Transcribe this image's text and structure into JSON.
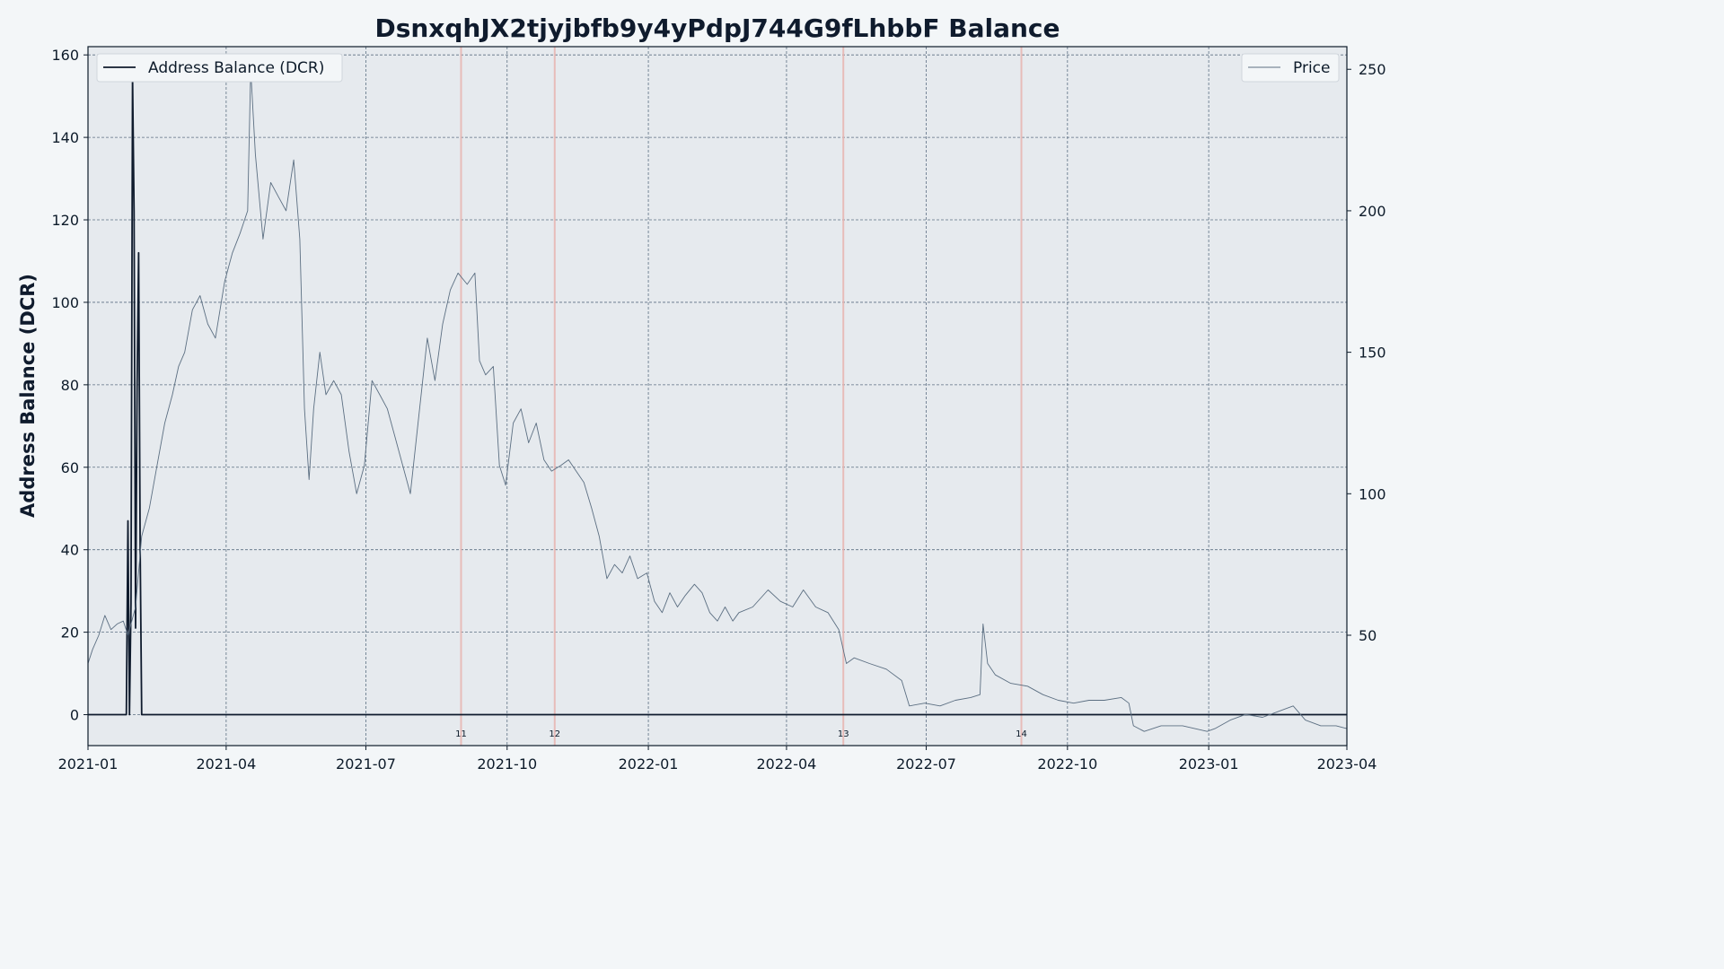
{
  "chart_data": {
    "type": "line",
    "title": "DsnxqhJX2tjyjbfb9y4yPdpJ744G9fLhbbF Balance",
    "ylabel": "Address Balance (DCR)",
    "ylabel_right": "",
    "xlim": [
      "2021-01-01",
      "2023-04-01"
    ],
    "ylim": [
      -7.5,
      162
    ],
    "ylim_right": [
      11,
      258
    ],
    "grid": true,
    "x_ticks": [
      "2021-01",
      "2021-04",
      "2021-07",
      "2021-10",
      "2022-01",
      "2022-04",
      "2022-07",
      "2022-10",
      "2023-01",
      "2023-04"
    ],
    "y_ticks": [
      0,
      20,
      40,
      60,
      80,
      100,
      120,
      140,
      160
    ],
    "y_ticks_right": [
      50,
      100,
      150,
      200,
      250
    ],
    "legend_left": {
      "position": "top-left",
      "label": "Address Balance (DCR)"
    },
    "legend_right": {
      "position": "top-right",
      "label": "Price"
    },
    "colors": {
      "balance": "#0f1b2d",
      "price": "#5c6f82",
      "markers": "#e8b4b0",
      "plot_background": "#e6eaee",
      "page_background": "#f3f6f8",
      "grid": "#5c6f82"
    },
    "series": [
      {
        "name": "Address Balance (DCR)",
        "axis": "left",
        "points": [
          [
            "2021-01-01",
            0
          ],
          [
            "2021-01-26",
            0
          ],
          [
            "2021-01-27",
            47
          ],
          [
            "2021-01-28",
            0
          ],
          [
            "2021-01-29",
            27
          ],
          [
            "2021-01-30",
            155
          ],
          [
            "2021-01-31",
            122
          ],
          [
            "2021-02-01",
            21
          ],
          [
            "2021-02-02",
            80
          ],
          [
            "2021-02-03",
            112
          ],
          [
            "2021-02-04",
            40
          ],
          [
            "2021-02-05",
            0
          ],
          [
            "2023-04-01",
            0
          ]
        ]
      },
      {
        "name": "Price",
        "axis": "right",
        "points": [
          [
            "2021-01-01",
            40
          ],
          [
            "2021-01-04",
            45
          ],
          [
            "2021-01-08",
            50
          ],
          [
            "2021-01-12",
            57
          ],
          [
            "2021-01-16",
            52
          ],
          [
            "2021-01-20",
            54
          ],
          [
            "2021-01-24",
            55
          ],
          [
            "2021-01-27",
            50
          ],
          [
            "2021-02-01",
            60
          ],
          [
            "2021-02-05",
            85
          ],
          [
            "2021-02-10",
            95
          ],
          [
            "2021-02-15",
            110
          ],
          [
            "2021-02-20",
            125
          ],
          [
            "2021-02-25",
            135
          ],
          [
            "2021-03-01",
            145
          ],
          [
            "2021-03-05",
            150
          ],
          [
            "2021-03-10",
            165
          ],
          [
            "2021-03-15",
            170
          ],
          [
            "2021-03-20",
            160
          ],
          [
            "2021-03-25",
            155
          ],
          [
            "2021-03-31",
            175
          ],
          [
            "2021-04-05",
            185
          ],
          [
            "2021-04-10",
            192
          ],
          [
            "2021-04-15",
            200
          ],
          [
            "2021-04-17",
            250
          ],
          [
            "2021-04-20",
            220
          ],
          [
            "2021-04-25",
            190
          ],
          [
            "2021-04-30",
            210
          ],
          [
            "2021-05-05",
            205
          ],
          [
            "2021-05-10",
            200
          ],
          [
            "2021-05-15",
            218
          ],
          [
            "2021-05-19",
            190
          ],
          [
            "2021-05-22",
            130
          ],
          [
            "2021-05-25",
            105
          ],
          [
            "2021-05-28",
            130
          ],
          [
            "2021-06-01",
            150
          ],
          [
            "2021-06-05",
            135
          ],
          [
            "2021-06-10",
            140
          ],
          [
            "2021-06-15",
            135
          ],
          [
            "2021-06-20",
            115
          ],
          [
            "2021-06-25",
            100
          ],
          [
            "2021-06-30",
            110
          ],
          [
            "2021-07-05",
            140
          ],
          [
            "2021-07-10",
            135
          ],
          [
            "2021-07-15",
            130
          ],
          [
            "2021-07-20",
            120
          ],
          [
            "2021-07-25",
            110
          ],
          [
            "2021-07-30",
            100
          ],
          [
            "2021-08-05",
            130
          ],
          [
            "2021-08-10",
            155
          ],
          [
            "2021-08-15",
            140
          ],
          [
            "2021-08-20",
            160
          ],
          [
            "2021-08-25",
            172
          ],
          [
            "2021-08-30",
            178
          ],
          [
            "2021-09-05",
            174
          ],
          [
            "2021-09-10",
            178
          ],
          [
            "2021-09-13",
            147
          ],
          [
            "2021-09-17",
            142
          ],
          [
            "2021-09-22",
            145
          ],
          [
            "2021-09-26",
            110
          ],
          [
            "2021-09-30",
            103
          ],
          [
            "2021-10-05",
            125
          ],
          [
            "2021-10-10",
            130
          ],
          [
            "2021-10-15",
            118
          ],
          [
            "2021-10-20",
            125
          ],
          [
            "2021-10-25",
            112
          ],
          [
            "2021-10-30",
            108
          ],
          [
            "2021-11-05",
            110
          ],
          [
            "2021-11-10",
            112
          ],
          [
            "2021-11-15",
            108
          ],
          [
            "2021-11-20",
            104
          ],
          [
            "2021-11-25",
            95
          ],
          [
            "2021-11-30",
            85
          ],
          [
            "2021-12-05",
            70
          ],
          [
            "2021-12-10",
            75
          ],
          [
            "2021-12-15",
            72
          ],
          [
            "2021-12-20",
            78
          ],
          [
            "2021-12-25",
            70
          ],
          [
            "2021-12-31",
            72
          ],
          [
            "2022-01-05",
            62
          ],
          [
            "2022-01-10",
            58
          ],
          [
            "2022-01-15",
            65
          ],
          [
            "2022-01-20",
            60
          ],
          [
            "2022-01-25",
            64
          ],
          [
            "2022-01-31",
            68
          ],
          [
            "2022-02-05",
            65
          ],
          [
            "2022-02-10",
            58
          ],
          [
            "2022-02-15",
            55
          ],
          [
            "2022-02-20",
            60
          ],
          [
            "2022-02-25",
            55
          ],
          [
            "2022-03-01",
            58
          ],
          [
            "2022-03-10",
            60
          ],
          [
            "2022-03-20",
            66
          ],
          [
            "2022-03-28",
            62
          ],
          [
            "2022-04-05",
            60
          ],
          [
            "2022-04-12",
            66
          ],
          [
            "2022-04-20",
            60
          ],
          [
            "2022-04-28",
            58
          ],
          [
            "2022-05-05",
            52
          ],
          [
            "2022-05-10",
            40
          ],
          [
            "2022-05-15",
            42
          ],
          [
            "2022-05-25",
            40
          ],
          [
            "2022-06-05",
            38
          ],
          [
            "2022-06-15",
            34
          ],
          [
            "2022-06-20",
            25
          ],
          [
            "2022-06-30",
            26
          ],
          [
            "2022-07-10",
            25
          ],
          [
            "2022-07-20",
            27
          ],
          [
            "2022-07-30",
            28
          ],
          [
            "2022-08-05",
            29
          ],
          [
            "2022-08-07",
            54
          ],
          [
            "2022-08-10",
            40
          ],
          [
            "2022-08-15",
            36
          ],
          [
            "2022-08-25",
            33
          ],
          [
            "2022-09-05",
            32
          ],
          [
            "2022-09-15",
            29
          ],
          [
            "2022-09-25",
            27
          ],
          [
            "2022-10-05",
            26
          ],
          [
            "2022-10-15",
            27
          ],
          [
            "2022-10-25",
            27
          ],
          [
            "2022-11-05",
            28
          ],
          [
            "2022-11-10",
            26
          ],
          [
            "2022-11-13",
            18
          ],
          [
            "2022-11-20",
            16
          ],
          [
            "2022-12-01",
            18
          ],
          [
            "2022-12-15",
            18
          ],
          [
            "2022-12-31",
            16
          ],
          [
            "2023-01-05",
            17
          ],
          [
            "2023-01-15",
            20
          ],
          [
            "2023-01-25",
            22
          ],
          [
            "2023-02-05",
            21
          ],
          [
            "2023-02-15",
            23
          ],
          [
            "2023-02-25",
            25
          ],
          [
            "2023-03-05",
            20
          ],
          [
            "2023-03-15",
            18
          ],
          [
            "2023-03-25",
            18
          ],
          [
            "2023-04-01",
            17
          ]
        ]
      }
    ],
    "markers": [
      {
        "date": "2021-09-01",
        "label": "11"
      },
      {
        "date": "2021-11-01",
        "label": "12"
      },
      {
        "date": "2022-05-08",
        "label": "13"
      },
      {
        "date": "2022-09-01",
        "label": "14"
      }
    ]
  }
}
